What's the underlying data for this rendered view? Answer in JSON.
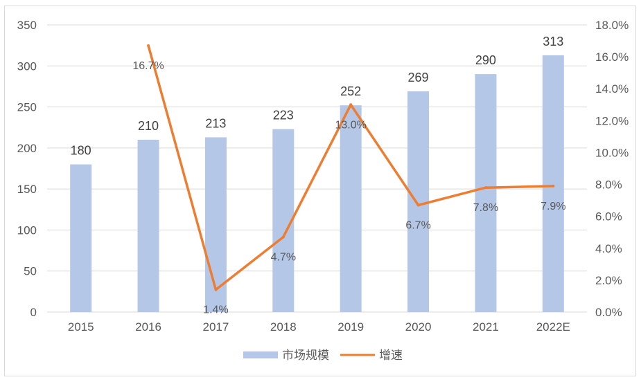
{
  "chart_data": {
    "type": "bar",
    "categories": [
      "2015",
      "2016",
      "2017",
      "2018",
      "2019",
      "2020",
      "2021",
      "2022E"
    ],
    "series": [
      {
        "name": "市场规模",
        "type": "bar",
        "axis": "left",
        "values": [
          180,
          210,
          213,
          223,
          252,
          269,
          290,
          313
        ],
        "labels": [
          "180",
          "210",
          "213",
          "223",
          "252",
          "269",
          "290",
          "313"
        ]
      },
      {
        "name": "增速",
        "type": "line",
        "axis": "right",
        "values": [
          null,
          16.7,
          1.4,
          4.7,
          13.0,
          6.7,
          7.8,
          7.9
        ],
        "labels": [
          "",
          "16.7%",
          "1.4%",
          "4.7%",
          "13.0%",
          "6.7%",
          "7.8%",
          "7.9%"
        ]
      }
    ],
    "y_left": {
      "range": [
        0,
        350
      ],
      "ticks": [
        0,
        50,
        100,
        150,
        200,
        250,
        300,
        350
      ],
      "tick_labels": [
        "0",
        "50",
        "100",
        "150",
        "200",
        "250",
        "300",
        "350"
      ]
    },
    "y_right": {
      "range": [
        0,
        18
      ],
      "ticks": [
        0,
        2,
        4,
        6,
        8,
        10,
        12,
        14,
        16,
        18
      ],
      "tick_labels": [
        "0.0%",
        "2.0%",
        "4.0%",
        "6.0%",
        "8.0%",
        "10.0%",
        "12.0%",
        "14.0%",
        "16.0%",
        "18.0%"
      ]
    },
    "grid": true,
    "legend": "bottom",
    "colors": {
      "bar": "#b4c7e7",
      "line": "#ed7d31",
      "grid": "#d9d9d9",
      "text": "#595959"
    }
  }
}
